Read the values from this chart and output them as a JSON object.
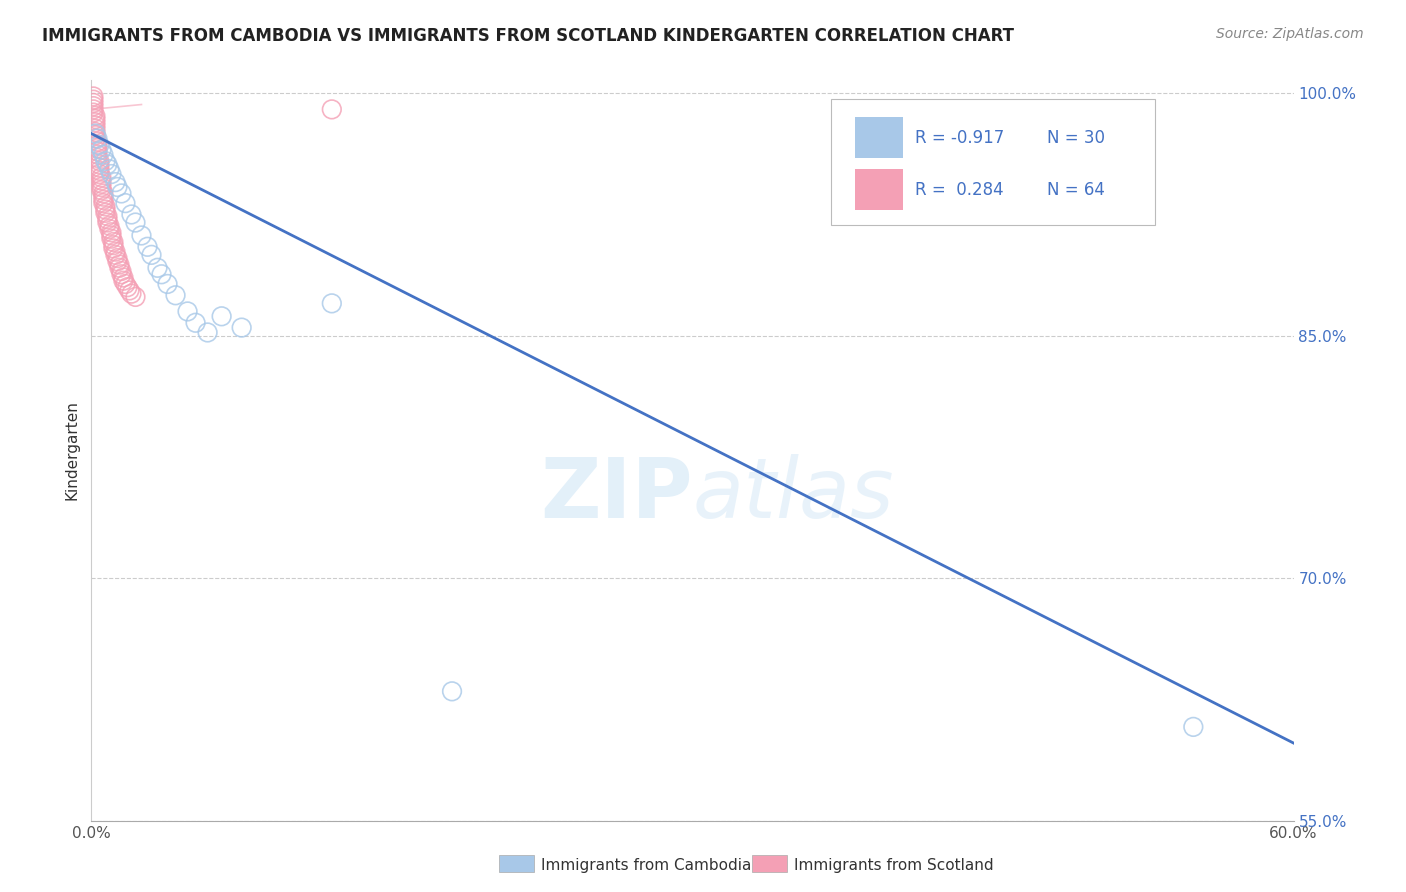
{
  "title": "IMMIGRANTS FROM CAMBODIA VS IMMIGRANTS FROM SCOTLAND KINDERGARTEN CORRELATION CHART",
  "source": "Source: ZipAtlas.com",
  "ylabel": "Kindergarten",
  "watermark": "ZIPatlas",
  "xlim": [
    0.0,
    0.6
  ],
  "ylim": [
    0.595,
    1.008
  ],
  "yticks": [
    1.0,
    0.85,
    0.7,
    0.55
  ],
  "ytick_labels": [
    "100.0%",
    "85.0%",
    "70.0%",
    "55.0%"
  ],
  "color_cambodia": "#a8c8e8",
  "color_scotland": "#f4a0b5",
  "line_color_cambodia": "#4472c4",
  "cambodia_x": [
    0.002,
    0.003,
    0.004,
    0.005,
    0.006,
    0.007,
    0.008,
    0.009,
    0.01,
    0.012,
    0.013,
    0.015,
    0.017,
    0.02,
    0.022,
    0.025,
    0.028,
    0.03,
    0.033,
    0.035,
    0.038,
    0.042,
    0.048,
    0.052,
    0.058,
    0.065,
    0.075,
    0.12,
    0.18,
    0.55
  ],
  "cambodia_y": [
    0.975,
    0.972,
    0.968,
    0.965,
    0.962,
    0.958,
    0.956,
    0.953,
    0.95,
    0.945,
    0.942,
    0.938,
    0.932,
    0.925,
    0.92,
    0.912,
    0.905,
    0.9,
    0.892,
    0.888,
    0.882,
    0.875,
    0.865,
    0.858,
    0.852,
    0.862,
    0.855,
    0.87,
    0.63,
    0.608
  ],
  "scotland_x": [
    0.001,
    0.001,
    0.001,
    0.001,
    0.001,
    0.001,
    0.002,
    0.002,
    0.002,
    0.002,
    0.002,
    0.002,
    0.002,
    0.002,
    0.003,
    0.003,
    0.003,
    0.003,
    0.003,
    0.003,
    0.004,
    0.004,
    0.004,
    0.004,
    0.004,
    0.005,
    0.005,
    0.005,
    0.005,
    0.005,
    0.006,
    0.006,
    0.006,
    0.006,
    0.007,
    0.007,
    0.007,
    0.008,
    0.008,
    0.008,
    0.009,
    0.009,
    0.01,
    0.01,
    0.01,
    0.011,
    0.011,
    0.011,
    0.012,
    0.012,
    0.013,
    0.013,
    0.014,
    0.014,
    0.015,
    0.015,
    0.016,
    0.016,
    0.017,
    0.018,
    0.019,
    0.02,
    0.022,
    0.12
  ],
  "scotland_y": [
    0.998,
    0.996,
    0.994,
    0.992,
    0.99,
    0.988,
    0.986,
    0.984,
    0.982,
    0.98,
    0.978,
    0.976,
    0.974,
    0.972,
    0.97,
    0.968,
    0.966,
    0.964,
    0.962,
    0.96,
    0.958,
    0.956,
    0.954,
    0.952,
    0.95,
    0.948,
    0.946,
    0.944,
    0.942,
    0.94,
    0.938,
    0.936,
    0.934,
    0.932,
    0.93,
    0.928,
    0.926,
    0.924,
    0.922,
    0.92,
    0.918,
    0.916,
    0.914,
    0.912,
    0.91,
    0.908,
    0.906,
    0.904,
    0.902,
    0.9,
    0.898,
    0.896,
    0.894,
    0.892,
    0.89,
    0.888,
    0.886,
    0.884,
    0.882,
    0.88,
    0.878,
    0.876,
    0.874,
    0.99
  ],
  "trendline_cam_x0": 0.0,
  "trendline_cam_y0": 0.975,
  "trendline_cam_x1": 0.6,
  "trendline_cam_y1": 0.598
}
